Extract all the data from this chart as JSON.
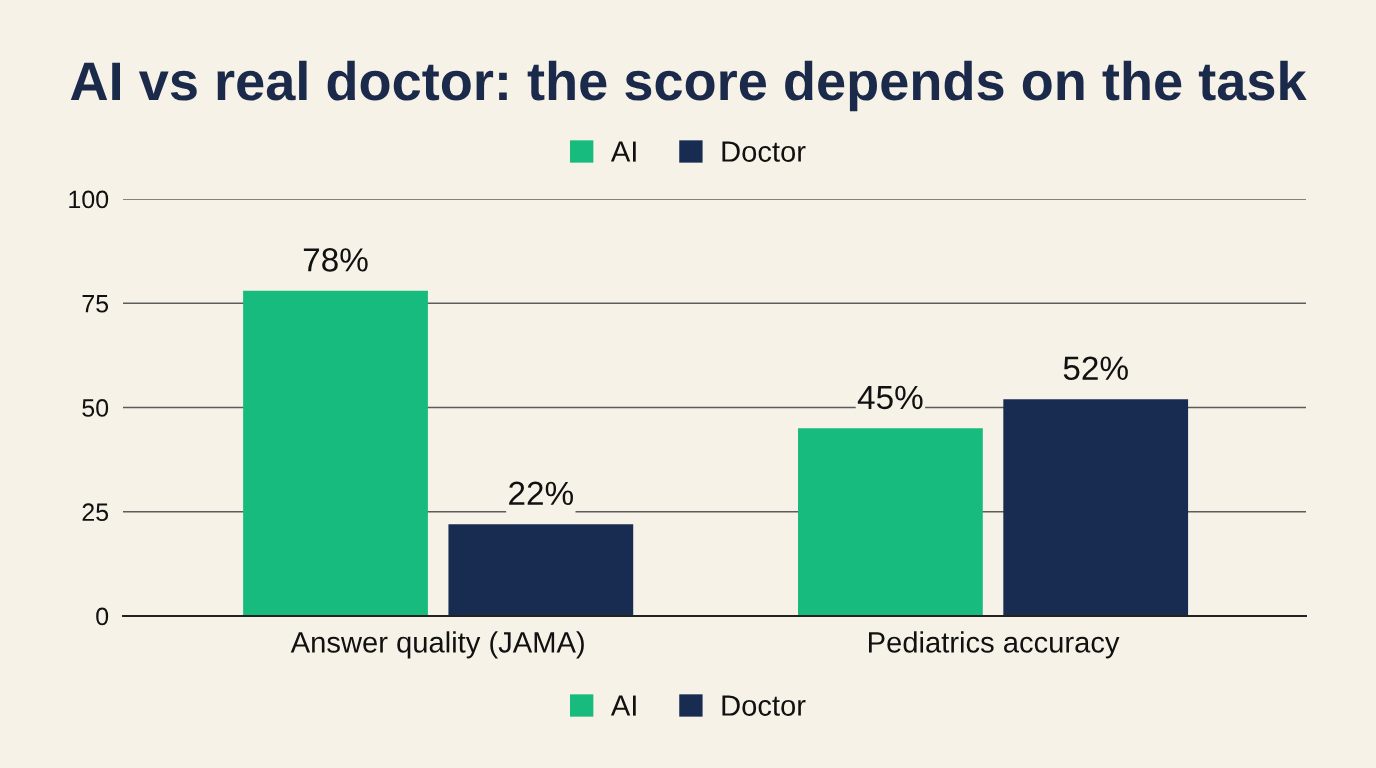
{
  "chart_data": {
    "type": "bar",
    "title": "AI vs real doctor: the score depends on the task",
    "categories": [
      "Answer quality (JAMA)",
      "Pediatrics accuracy"
    ],
    "series": [
      {
        "name": "AI",
        "color": "#18bb7e",
        "values": [
          78,
          45
        ],
        "value_labels": [
          "78%",
          "45%"
        ]
      },
      {
        "name": "Doctor",
        "color": "#182c52",
        "values": [
          22,
          52
        ],
        "value_labels": [
          "22%",
          "52%"
        ]
      }
    ],
    "ylim": [
      0,
      100
    ],
    "yticks": [
      0,
      25,
      50,
      75,
      100
    ],
    "grid": "y",
    "legend": [
      "top",
      "bottom"
    ]
  }
}
